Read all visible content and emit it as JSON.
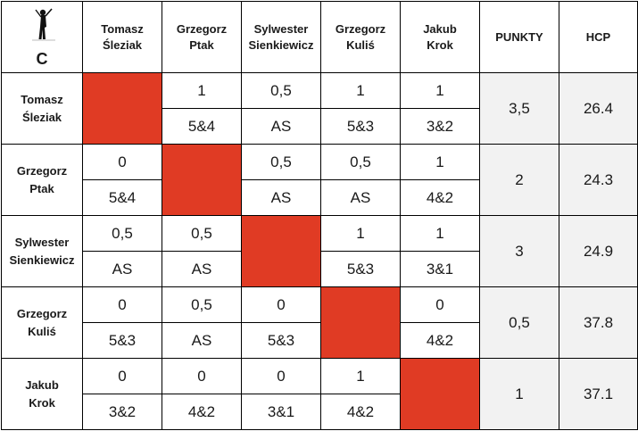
{
  "group": "C",
  "columns": [
    {
      "line1": "Tomasz",
      "line2": "Śleziak"
    },
    {
      "line1": "Grzegorz",
      "line2": "Ptak"
    },
    {
      "line1": "Sylwester",
      "line2": "Sienkiewicz"
    },
    {
      "line1": "Grzegorz",
      "line2": "Kuliś"
    },
    {
      "line1": "Jakub",
      "line2": "Krok"
    }
  ],
  "points_header": "PUNKTY",
  "hcp_header": "HCP",
  "rows": [
    {
      "line1": "Tomasz",
      "line2": "Śleziak",
      "cells": [
        null,
        {
          "pts": "1",
          "res": "5&4"
        },
        {
          "pts": "0,5",
          "res": "AS"
        },
        {
          "pts": "1",
          "res": "5&3"
        },
        {
          "pts": "1",
          "res": "3&2"
        }
      ],
      "points": "3,5",
      "hcp": "26.4"
    },
    {
      "line1": "Grzegorz",
      "line2": "Ptak",
      "cells": [
        {
          "pts": "0",
          "res": "5&4"
        },
        null,
        {
          "pts": "0,5",
          "res": "AS"
        },
        {
          "pts": "0,5",
          "res": "AS"
        },
        {
          "pts": "1",
          "res": "4&2"
        }
      ],
      "points": "2",
      "hcp": "24.3"
    },
    {
      "line1": "Sylwester",
      "line2": "Sienkiewicz",
      "cells": [
        {
          "pts": "0,5",
          "res": "AS"
        },
        {
          "pts": "0,5",
          "res": "AS"
        },
        null,
        {
          "pts": "1",
          "res": "5&3"
        },
        {
          "pts": "1",
          "res": "3&1"
        }
      ],
      "points": "3",
      "hcp": "24.9"
    },
    {
      "line1": "Grzegorz",
      "line2": "Kuliś",
      "cells": [
        {
          "pts": "0",
          "res": "5&3"
        },
        {
          "pts": "0,5",
          "res": "AS"
        },
        {
          "pts": "0",
          "res": "5&3"
        },
        null,
        {
          "pts": "0",
          "res": "4&2"
        }
      ],
      "points": "0,5",
      "hcp": "37.8"
    },
    {
      "line1": "Jakub",
      "line2": "Krok",
      "cells": [
        {
          "pts": "0",
          "res": "3&2"
        },
        {
          "pts": "0",
          "res": "4&2"
        },
        {
          "pts": "0",
          "res": "3&1"
        },
        {
          "pts": "1",
          "res": "4&2"
        },
        null
      ],
      "points": "1",
      "hcp": "37.1"
    }
  ],
  "colors": {
    "diagonal": "#e03b24",
    "header_bg": "#f2f2f2",
    "border": "#000000"
  },
  "icons": [
    "golfer-icon"
  ]
}
